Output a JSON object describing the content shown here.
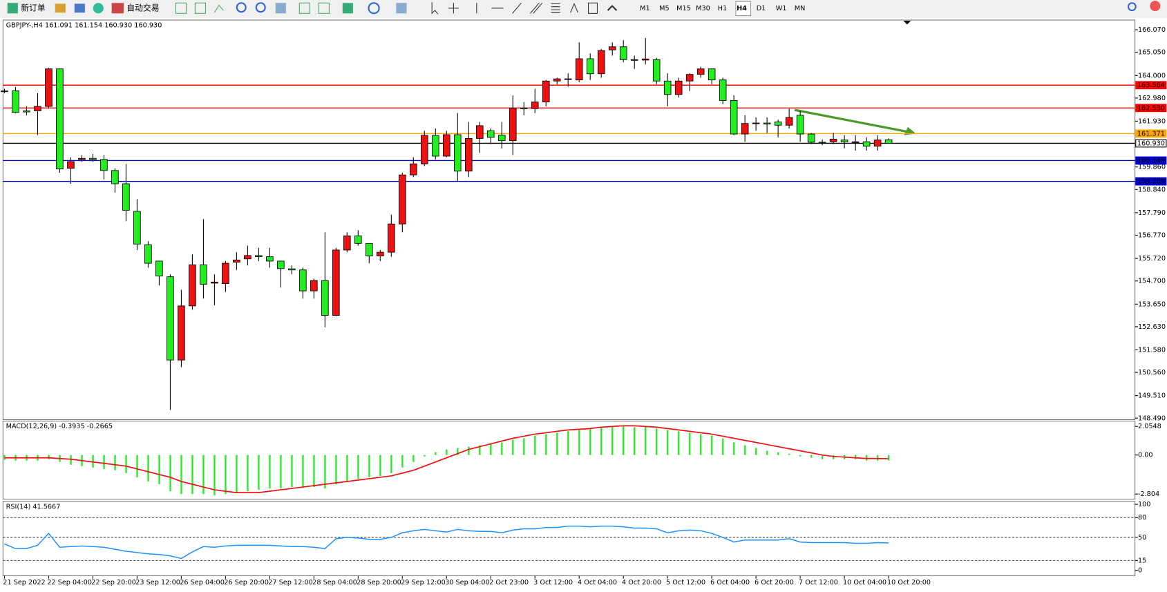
{
  "toolbar": {
    "new_order": "新订单",
    "auto_trading": "自动交易",
    "timeframes": [
      "M1",
      "M5",
      "M15",
      "M30",
      "H1",
      "H4",
      "D1",
      "W1",
      "MN"
    ],
    "active_timeframe": 5
  },
  "chart_data": [
    {
      "type": "candlestick",
      "title": "GBPJPY-,H4  161.091 161.154 160.930 160.930",
      "up_color": "#ee1111",
      "down_color": "#22ee22",
      "categories": [
        "21 Sep 2022",
        null,
        null,
        null,
        "22 Sep 04:00",
        null,
        null,
        null,
        "22 Sep 20:00",
        null,
        null,
        null,
        "23 Sep 12:00",
        null,
        null,
        null,
        "26 Sep 04:00",
        null,
        null,
        null,
        "26 Sep 20:00",
        null,
        null,
        null,
        "27 Sep 12:00",
        null,
        null,
        null,
        "28 Sep 04:00",
        null,
        null,
        null,
        "28 Sep 20:00",
        null,
        null,
        null,
        "29 Sep 12:00",
        null,
        null,
        null,
        "30 Sep 04:00",
        null,
        null,
        null,
        "2 Oct 23:00",
        null,
        null,
        null,
        "3 Oct 12:00",
        null,
        null,
        null,
        "4 Oct 04:00",
        null,
        null,
        null,
        "4 Oct 20:00",
        null,
        null,
        null,
        "5 Oct 12:00",
        null,
        null,
        null,
        "6 Oct 04:00",
        null,
        null,
        null,
        "6 Oct 20:00",
        null,
        null,
        null,
        "7 Oct 12:00",
        null,
        null,
        null,
        "10 Oct 04:00",
        null,
        null,
        null,
        "10 Oct 20:00"
      ],
      "open": [
        163.3,
        163.31,
        162.4,
        162.4,
        162.6,
        164.3,
        159.8,
        160.2,
        160.25,
        160.2,
        159.7,
        159.1,
        157.85,
        156.34,
        155.6,
        154.89,
        151.12,
        153.57,
        155.43,
        154.6,
        154.58,
        155.55,
        155.7,
        155.85,
        155.8,
        155.6,
        155.25,
        155.2,
        154.25,
        154.72,
        153.14,
        156.1,
        156.74,
        156.4,
        155.83,
        156.0,
        157.28,
        159.5,
        160.0,
        161.29,
        160.35,
        161.32,
        159.67,
        161.15,
        161.5,
        161.3,
        161.05,
        162.53,
        162.5,
        162.8,
        163.75,
        163.85,
        163.8,
        164.76,
        164.08,
        165.16,
        165.3,
        164.72,
        164.7,
        164.72,
        163.75,
        163.14,
        163.75,
        164.05,
        164.3,
        163.8,
        162.87,
        161.35,
        161.83,
        161.85,
        161.9,
        161.75,
        162.2,
        161.35,
        160.98,
        161.0,
        161.08,
        161.0,
        161.0,
        160.8,
        161.091
      ],
      "high": [
        163.4,
        163.48,
        162.6,
        163.2,
        164.35,
        164.3,
        160.3,
        160.4,
        160.45,
        160.4,
        159.8,
        160.0,
        158.4,
        156.5,
        155.6,
        155.0,
        154.3,
        155.9,
        157.5,
        155.0,
        155.6,
        156.0,
        156.3,
        156.2,
        156.2,
        155.6,
        155.4,
        155.3,
        154.8,
        156.9,
        156.2,
        156.9,
        157.0,
        156.4,
        156.1,
        157.7,
        159.6,
        160.3,
        161.5,
        161.6,
        161.5,
        162.3,
        161.9,
        161.9,
        161.6,
        161.9,
        163.1,
        162.8,
        163.4,
        163.8,
        163.9,
        164.1,
        165.5,
        165.0,
        165.2,
        165.5,
        165.6,
        164.9,
        165.7,
        164.8,
        164.1,
        163.9,
        164.1,
        164.4,
        164.3,
        163.9,
        163.1,
        162.2,
        162.1,
        162.1,
        162.0,
        162.5,
        162.4,
        161.4,
        161.1,
        161.4,
        161.3,
        161.3,
        161.2,
        161.3,
        161.154
      ],
      "low": [
        163.2,
        162.3,
        162.2,
        161.3,
        162.5,
        159.6,
        159.1,
        160.1,
        160.1,
        159.3,
        158.7,
        157.4,
        156.1,
        155.3,
        154.5,
        148.86,
        150.8,
        153.4,
        153.9,
        153.6,
        154.2,
        155.2,
        155.4,
        155.6,
        155.3,
        154.4,
        155.0,
        153.9,
        153.9,
        152.6,
        153.1,
        156.0,
        156.3,
        155.5,
        155.6,
        155.8,
        156.9,
        159.4,
        159.9,
        160.2,
        160.3,
        159.2,
        159.4,
        160.5,
        160.9,
        160.7,
        160.4,
        162.2,
        162.3,
        162.6,
        163.6,
        163.5,
        163.7,
        163.8,
        163.9,
        164.9,
        164.6,
        164.3,
        164.5,
        163.6,
        162.6,
        163.0,
        163.3,
        163.9,
        163.6,
        162.7,
        161.3,
        161.0,
        161.5,
        161.4,
        161.2,
        161.6,
        161.0,
        160.9,
        160.85,
        160.9,
        160.7,
        160.6,
        160.6,
        160.6,
        160.93
      ],
      "close": [
        163.3,
        162.33,
        162.35,
        162.6,
        164.3,
        159.77,
        160.1,
        160.25,
        160.2,
        159.7,
        159.1,
        157.9,
        156.37,
        155.5,
        154.92,
        151.12,
        153.57,
        155.43,
        154.55,
        154.65,
        155.5,
        155.65,
        155.85,
        155.8,
        155.6,
        155.26,
        155.2,
        154.25,
        154.72,
        153.14,
        156.1,
        156.74,
        156.4,
        155.83,
        156.0,
        157.28,
        159.5,
        160.0,
        161.29,
        160.35,
        161.32,
        159.67,
        161.15,
        161.73,
        161.2,
        161.05,
        162.53,
        162.5,
        162.8,
        163.75,
        163.85,
        163.85,
        164.76,
        164.08,
        165.13,
        165.3,
        164.72,
        164.7,
        164.75,
        163.75,
        163.14,
        163.75,
        164.05,
        164.3,
        163.8,
        162.87,
        161.35,
        161.83,
        161.85,
        161.8,
        161.75,
        162.1,
        161.35,
        160.98,
        160.96,
        161.12,
        161.0,
        161.0,
        160.8,
        161.08,
        160.93
      ],
      "levels": [
        {
          "value": 163.564,
          "color": "#ff0000"
        },
        {
          "value": {
            "value": 162.53,
            "label": "162.530"
          },
          "color": "#ff0000"
        },
        {
          "value": 161.371,
          "color": "#ffa500"
        },
        {
          "value": {
            "value": 160.93,
            "label": "160.930"
          },
          "color": "#000000"
        },
        {
          "value": 160.149,
          "color": "#0000cc"
        },
        {
          "value": 159.209,
          "color": "#0000cc"
        }
      ],
      "ylim": [
        148.42,
        166.51
      ],
      "yticks": [
        {
          "value": 166.07,
          "label": "166.070"
        },
        {
          "value": 165.05,
          "label": "165.050"
        },
        {
          "value": 164.0,
          "label": "164.000"
        },
        {
          "value": 162.98,
          "label": "162.980"
        },
        {
          "value": 161.93,
          "label": "161.930"
        },
        {
          "value": 159.86,
          "label": "159.860"
        },
        {
          "value": 158.84,
          "label": "158.840"
        },
        {
          "value": 157.79,
          "label": "157.790"
        },
        {
          "value": 156.77,
          "label": "156.770"
        },
        {
          "value": 155.72,
          "label": "155.720"
        },
        {
          "value": 154.7,
          "label": "154.700"
        },
        {
          "value": 153.65,
          "label": "153.650"
        },
        {
          "value": 152.63,
          "label": "152.630"
        },
        {
          "value": 151.58,
          "label": "151.580"
        },
        {
          "value": 150.56,
          "label": "150.560"
        },
        {
          "value": 149.51,
          "label": "149.510"
        },
        {
          "value": 148.49,
          "label": "148.490"
        }
      ]
    },
    {
      "type": "macd",
      "title": "MACD(12,26,9) -0.3935 -0.2665",
      "color": "#22ee22",
      "signal_color": "#ee1111",
      "values": [
        -0.35,
        -0.4,
        -0.4,
        -0.4,
        -0.3,
        -0.5,
        -0.7,
        -0.8,
        -0.9,
        -1.0,
        -1.1,
        -1.3,
        -1.6,
        -1.9,
        -2.1,
        -2.6,
        -2.8,
        -2.8,
        -2.8,
        -2.9,
        -2.8,
        -2.7,
        -2.6,
        -2.5,
        -2.4,
        -2.4,
        -2.3,
        -2.3,
        -2.3,
        -2.4,
        -2.1,
        -1.9,
        -1.7,
        -1.6,
        -1.5,
        -1.3,
        -0.9,
        -0.5,
        -0.1,
        0.2,
        0.4,
        0.5,
        0.6,
        0.7,
        0.8,
        0.9,
        1.1,
        1.2,
        1.4,
        1.5,
        1.6,
        1.7,
        1.8,
        1.9,
        2.0,
        2.0,
        2.1,
        2.0,
        2.0,
        1.9,
        1.8,
        1.7,
        1.6,
        1.5,
        1.4,
        1.2,
        0.9,
        0.7,
        0.5,
        0.3,
        0.2,
        0.1,
        -0.1,
        -0.2,
        -0.3,
        -0.3,
        -0.3,
        -0.3,
        -0.4,
        -0.4,
        -0.3935
      ],
      "signal": [
        -0.2,
        -0.2,
        -0.2,
        -0.2,
        -0.2,
        -0.25,
        -0.3,
        -0.4,
        -0.5,
        -0.6,
        -0.7,
        -0.8,
        -1.0,
        -1.2,
        -1.4,
        -1.6,
        -1.9,
        -2.1,
        -2.3,
        -2.5,
        -2.6,
        -2.7,
        -2.7,
        -2.7,
        -2.6,
        -2.5,
        -2.4,
        -2.3,
        -2.2,
        -2.1,
        -2.0,
        -1.9,
        -1.8,
        -1.7,
        -1.6,
        -1.5,
        -1.3,
        -1.1,
        -0.8,
        -0.5,
        -0.2,
        0.1,
        0.4,
        0.6,
        0.8,
        1.0,
        1.2,
        1.35,
        1.5,
        1.6,
        1.7,
        1.8,
        1.85,
        1.9,
        2.0,
        2.05,
        2.1,
        2.1,
        2.05,
        2.0,
        1.9,
        1.8,
        1.7,
        1.6,
        1.5,
        1.35,
        1.2,
        1.05,
        0.9,
        0.75,
        0.6,
        0.45,
        0.3,
        0.15,
        0.0,
        -0.1,
        -0.15,
        -0.2,
        -0.25,
        -0.25,
        -0.2665
      ],
      "ylim": [
        -3.17,
        2.43
      ],
      "yticks": [
        2.0548,
        {
          "value": 0,
          "label": "0.00"
        },
        -2.804
      ]
    },
    {
      "type": "line",
      "title": "RSI(14) 41.5667",
      "color": "#1e90ff",
      "values": [
        40,
        33,
        33,
        38,
        56,
        35,
        36,
        37,
        36,
        35,
        32,
        29,
        27,
        25,
        24,
        22,
        18,
        28,
        36,
        35,
        37,
        38,
        38,
        38,
        38,
        37,
        36,
        36,
        35,
        33,
        48,
        50,
        49,
        47,
        47,
        50,
        57,
        60,
        62,
        60,
        58,
        62,
        60,
        59,
        59,
        57,
        61,
        63,
        63,
        65,
        65,
        67,
        67,
        66,
        67,
        67,
        66,
        64,
        64,
        63,
        57,
        60,
        61,
        60,
        56,
        50,
        43,
        46,
        46,
        46,
        46,
        48,
        43,
        42,
        42,
        42,
        42,
        41,
        41,
        42,
        41.5667
      ],
      "level_lines": [
        80,
        50,
        15
      ],
      "ylim": [
        -8,
        104.5
      ],
      "yticks": [
        100,
        80,
        50,
        15,
        0
      ]
    }
  ]
}
